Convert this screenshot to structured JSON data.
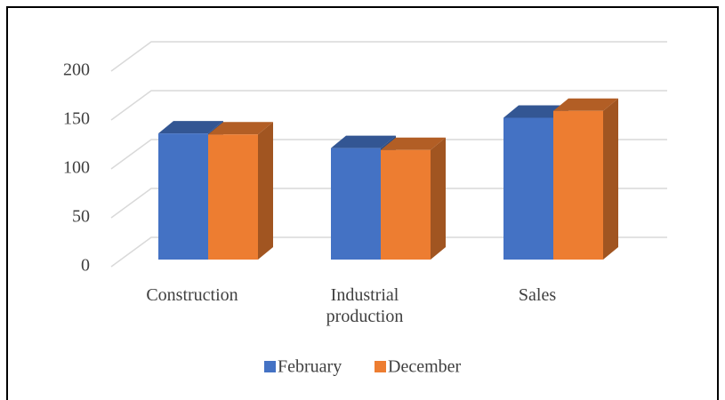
{
  "chart_data": {
    "type": "bar3d",
    "categories": [
      "Construction",
      "Industrial production",
      "Sales"
    ],
    "series": [
      {
        "name": "February",
        "color": "#4472c4",
        "values": [
          129,
          114,
          145
        ]
      },
      {
        "name": "December",
        "color": "#ed7d31",
        "values": [
          128,
          112,
          152
        ]
      }
    ],
    "ylim": [
      0,
      200
    ],
    "yticks": [
      0,
      50,
      100,
      150,
      200
    ],
    "grid": true,
    "legend": "bottom"
  }
}
